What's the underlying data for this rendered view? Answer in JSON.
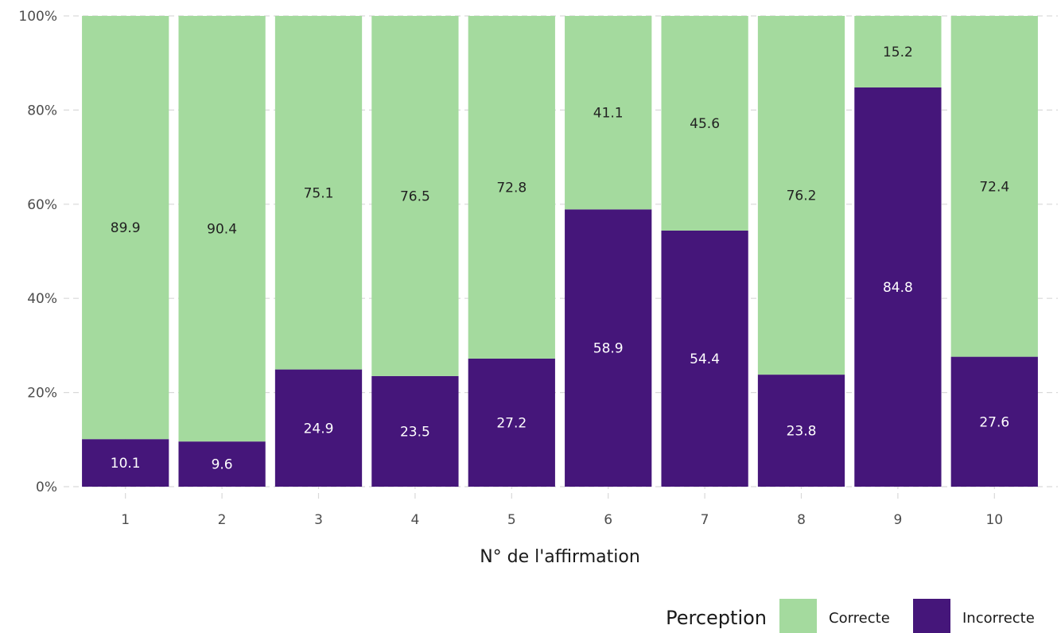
{
  "chart_data": {
    "type": "bar",
    "stacked": true,
    "categories": [
      "1",
      "2",
      "3",
      "4",
      "5",
      "6",
      "7",
      "8",
      "9",
      "10"
    ],
    "series": [
      {
        "name": "Correcte",
        "color": "#a4da9e",
        "label_color": "#222222",
        "values": [
          89.9,
          90.4,
          75.1,
          76.5,
          72.8,
          41.1,
          45.6,
          76.2,
          15.2,
          72.4
        ]
      },
      {
        "name": "Incorrecte",
        "color": "#45167a",
        "label_color": "#ffffff",
        "values": [
          10.1,
          9.6,
          24.9,
          23.5,
          27.2,
          58.9,
          54.4,
          23.8,
          84.8,
          27.6
        ]
      }
    ],
    "xlabel": "N° de l'affirmation",
    "ylabel": "",
    "ylim": [
      0,
      100
    ],
    "yticks": [
      "0%",
      "20%",
      "40%",
      "60%",
      "80%",
      "100%"
    ],
    "grid": true,
    "legend": {
      "title": "Perception",
      "position": "bottom-right"
    }
  }
}
